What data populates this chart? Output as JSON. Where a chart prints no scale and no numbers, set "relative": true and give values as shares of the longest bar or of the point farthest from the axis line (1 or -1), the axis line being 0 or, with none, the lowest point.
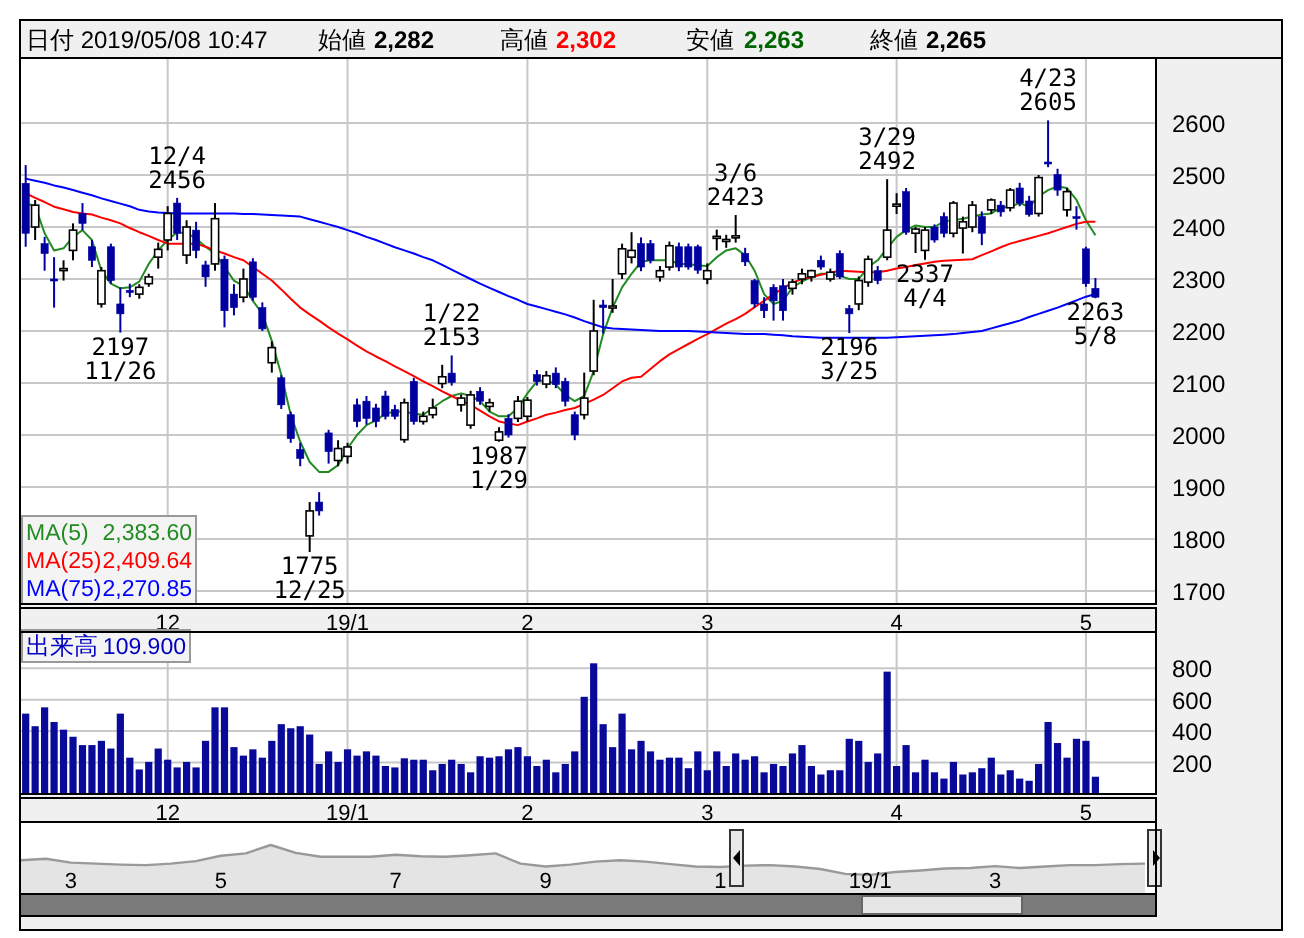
{
  "chart_data": [
    {
      "type": "candlestick",
      "title": "日付 2019/05/08 10:47",
      "annotations": [
        "始値",
        "2,282",
        "高値",
        "2,302",
        "安値",
        "2,263",
        "終値",
        "2,265",
        "2,383.60",
        "2,409.64",
        "2,270.85",
        "12/4\n2456",
        "2197\n11/26",
        "1775\n12/25",
        "1/22\n2153",
        "1987\n1/29",
        "3/6\n2423",
        "3/29\n2492",
        "2196\n3/25",
        "2337\n4/4",
        "4/23\n2605",
        "2263\n5/8"
      ],
      "categories": [
        null,
        null,
        null,
        null,
        null,
        null,
        null,
        null,
        null,
        null,
        null,
        null,
        null,
        null,
        null,
        "12",
        null,
        null,
        null,
        null,
        null,
        null,
        null,
        null,
        null,
        null,
        null,
        null,
        null,
        null,
        null,
        null,
        null,
        null,
        "19/1",
        null,
        null,
        null,
        null,
        null,
        null,
        null,
        null,
        null,
        null,
        null,
        null,
        null,
        null,
        null,
        null,
        null,
        null,
        "2",
        null,
        null,
        null,
        null,
        null,
        null,
        null,
        null,
        null,
        null,
        null,
        null,
        null,
        null,
        null,
        null,
        null,
        null,
        "3",
        null,
        null,
        null,
        null,
        null,
        null,
        null,
        null,
        null,
        null,
        null,
        null,
        null,
        null,
        null,
        null,
        null,
        null,
        null,
        "4",
        null,
        null,
        null,
        null,
        null,
        null,
        null,
        null,
        null,
        null,
        null,
        null,
        null,
        null,
        null,
        null,
        null,
        null,
        null,
        "5",
        null
      ],
      "colors": [
        "#0000a0",
        "#ffffff",
        "#0000a0",
        "#0000a0",
        "#ffffff",
        "#ffffff",
        "#0000a0",
        "#0000a0",
        "#ffffff",
        "#0000a0",
        "#0000a0",
        "#0000a0",
        "#ffffff",
        "#ffffff",
        "#ffffff",
        "#ffffff",
        "#0000a0",
        "#ffffff",
        "#0000a0",
        "#0000a0",
        "#ffffff",
        "#0000a0",
        "#0000a0",
        "#ffffff",
        "#0000a0",
        "#0000a0",
        "#ffffff",
        "#0000a0",
        "#0000a0",
        "#0000a0",
        "#ffffff",
        "#0000a0",
        "#0000a0",
        "#ffffff",
        "#ffffff",
        "#0000a0",
        "#0000a0",
        "#0000a0",
        "#0000a0",
        "#0000a0",
        "#ffffff",
        "#0000a0",
        "#ffffff",
        "#ffffff",
        "#ffffff",
        "#0000a0",
        "#ffffff",
        "#ffffff",
        "#0000a0",
        "#ffffff",
        "#ffffff",
        "#0000a0",
        "#ffffff",
        "#ffffff",
        "#0000a0",
        "#ffffff",
        "#0000a0",
        "#0000a0",
        "#0000a0",
        "#ffffff",
        "#ffffff",
        "#0000a0",
        "#ffffff",
        "#ffffff",
        "#ffffff",
        "#0000a0",
        "#0000a0",
        "#ffffff",
        "#ffffff",
        "#0000a0",
        "#0000a0",
        "#0000a0",
        "#ffffff",
        "#ffffff",
        "#ffffff",
        "#ffffff",
        "#0000a0",
        "#0000a0",
        "#0000a0",
        "#0000a0",
        "#0000a0",
        "#ffffff",
        "#ffffff",
        "#ffffff",
        "#0000a0",
        "#ffffff",
        "#0000a0",
        "#0000a0",
        "#ffffff",
        "#ffffff",
        "#0000a0",
        "#ffffff",
        "#ffffff",
        "#0000a0",
        "#ffffff",
        "#ffffff",
        "#0000a0",
        "#0000a0",
        "#ffffff",
        "#ffffff",
        "#ffffff",
        "#0000a0",
        "#ffffff",
        "#0000a0",
        "#ffffff",
        "#0000a0",
        "#0000a0",
        "#ffffff",
        "#0000a0",
        "#0000a0",
        "#ffffff",
        "#0000a0",
        "#0000a0",
        "#0000a0"
      ],
      "ohlc": [
        [
          2484,
          2519,
          2362,
          2388
        ],
        [
          2400,
          2452,
          2375,
          2442
        ],
        [
          2368,
          2381,
          2316,
          2349
        ],
        [
          2300,
          2342,
          2245,
          2297
        ],
        [
          2318,
          2336,
          2297,
          2320
        ],
        [
          2355,
          2407,
          2336,
          2394
        ],
        [
          2426,
          2446,
          2394,
          2407
        ],
        [
          2362,
          2375,
          2323,
          2336
        ],
        [
          2252,
          2323,
          2245,
          2316
        ],
        [
          2362,
          2368,
          2291,
          2297
        ],
        [
          2252,
          2284,
          2197,
          2233
        ],
        [
          2278,
          2291,
          2265,
          2275
        ],
        [
          2271,
          2290,
          2262,
          2284
        ],
        [
          2291,
          2310,
          2285,
          2304
        ],
        [
          2342,
          2370,
          2320,
          2357
        ],
        [
          2375,
          2440,
          2355,
          2426
        ],
        [
          2446,
          2456,
          2375,
          2388
        ],
        [
          2346,
          2413,
          2329,
          2400
        ],
        [
          2394,
          2410,
          2340,
          2355
        ],
        [
          2327,
          2335,
          2285,
          2304
        ],
        [
          2329,
          2446,
          2316,
          2416
        ],
        [
          2338,
          2345,
          2207,
          2239
        ],
        [
          2271,
          2290,
          2230,
          2245
        ],
        [
          2265,
          2320,
          2255,
          2300
        ],
        [
          2333,
          2340,
          2258,
          2265
        ],
        [
          2245,
          2255,
          2200,
          2204
        ],
        [
          2139,
          2180,
          2120,
          2168
        ],
        [
          2110,
          2115,
          2050,
          2058
        ],
        [
          2039,
          2045,
          1985,
          1993
        ],
        [
          1972,
          1985,
          1940,
          1955
        ],
        [
          1806,
          1871,
          1775,
          1854
        ],
        [
          1871,
          1890,
          1845,
          1854
        ],
        [
          2004,
          2010,
          1945,
          1968
        ],
        [
          1951,
          1990,
          1940,
          1974
        ],
        [
          1959,
          1985,
          1945,
          1977
        ],
        [
          2058,
          2070,
          2015,
          2026
        ],
        [
          2065,
          2075,
          2020,
          2032
        ],
        [
          2052,
          2060,
          2015,
          2026
        ],
        [
          2075,
          2085,
          2030,
          2036
        ],
        [
          2049,
          2058,
          2030,
          2036
        ],
        [
          1991,
          2070,
          1985,
          2062
        ],
        [
          2103,
          2110,
          2020,
          2026
        ],
        [
          2026,
          2045,
          2020,
          2036
        ],
        [
          2039,
          2070,
          2032,
          2052
        ],
        [
          2099,
          2135,
          2090,
          2112
        ],
        [
          2119,
          2153,
          2095,
          2101
        ],
        [
          2058,
          2078,
          2045,
          2071
        ],
        [
          2019,
          2085,
          2012,
          2077
        ],
        [
          2084,
          2092,
          2058,
          2065
        ],
        [
          2055,
          2070,
          2045,
          2062
        ],
        [
          1990,
          2015,
          1987,
          2006
        ],
        [
          2032,
          2040,
          1995,
          2000
        ],
        [
          2032,
          2075,
          2025,
          2065
        ],
        [
          2036,
          2073,
          2026,
          2067
        ],
        [
          2116,
          2125,
          2095,
          2103
        ],
        [
          2098,
          2123,
          2090,
          2114
        ],
        [
          2119,
          2130,
          2090,
          2097
        ],
        [
          2103,
          2110,
          2055,
          2065
        ],
        [
          2039,
          2045,
          1990,
          2000
        ],
        [
          2039,
          2120,
          2030,
          2071
        ],
        [
          2123,
          2260,
          2115,
          2200
        ],
        [
          2250,
          2260,
          2195,
          2245
        ],
        [
          2247,
          2300,
          2235,
          2248
        ],
        [
          2310,
          2368,
          2300,
          2358
        ],
        [
          2342,
          2390,
          2330,
          2355
        ],
        [
          2368,
          2380,
          2315,
          2323
        ],
        [
          2368,
          2375,
          2330,
          2336
        ],
        [
          2304,
          2325,
          2295,
          2316
        ],
        [
          2323,
          2372,
          2316,
          2364
        ],
        [
          2362,
          2370,
          2315,
          2323
        ],
        [
          2362,
          2368,
          2318,
          2323
        ],
        [
          2362,
          2366,
          2310,
          2317
        ],
        [
          2300,
          2330,
          2290,
          2316
        ],
        [
          2380,
          2395,
          2355,
          2382
        ],
        [
          2374,
          2385,
          2360,
          2376
        ],
        [
          2381,
          2423,
          2370,
          2383
        ],
        [
          2349,
          2360,
          2325,
          2333
        ],
        [
          2297,
          2300,
          2245,
          2252
        ],
        [
          2252,
          2265,
          2225,
          2239
        ],
        [
          2284,
          2290,
          2220,
          2258
        ],
        [
          2287,
          2300,
          2220,
          2239
        ],
        [
          2282,
          2300,
          2270,
          2294
        ],
        [
          2300,
          2320,
          2290,
          2310
        ],
        [
          2304,
          2318,
          2295,
          2316
        ],
        [
          2336,
          2345,
          2318,
          2323
        ],
        [
          2300,
          2320,
          2295,
          2313
        ],
        [
          2349,
          2355,
          2300,
          2304
        ],
        [
          2243,
          2250,
          2196,
          2233
        ],
        [
          2252,
          2305,
          2240,
          2297
        ],
        [
          2294,
          2345,
          2285,
          2338
        ],
        [
          2316,
          2325,
          2290,
          2297
        ],
        [
          2342,
          2492,
          2336,
          2394
        ],
        [
          2440,
          2465,
          2425,
          2444
        ],
        [
          2468,
          2475,
          2385,
          2390
        ],
        [
          2388,
          2400,
          2350,
          2396
        ],
        [
          2355,
          2400,
          2337,
          2394
        ],
        [
          2400,
          2405,
          2370,
          2375
        ],
        [
          2420,
          2428,
          2380,
          2388
        ],
        [
          2388,
          2450,
          2380,
          2446
        ],
        [
          2398,
          2420,
          2349,
          2410
        ],
        [
          2400,
          2450,
          2390,
          2442
        ],
        [
          2420,
          2430,
          2365,
          2388
        ],
        [
          2433,
          2455,
          2425,
          2452
        ],
        [
          2442,
          2450,
          2420,
          2429
        ],
        [
          2437,
          2475,
          2430,
          2471
        ],
        [
          2475,
          2485,
          2440,
          2446
        ],
        [
          2450,
          2460,
          2420,
          2424
        ],
        [
          2426,
          2500,
          2420,
          2495
        ],
        [
          2525,
          2605,
          2515,
          2523
        ],
        [
          2501,
          2512,
          2460,
          2471
        ],
        [
          2433,
          2475,
          2420,
          2468
        ],
        [
          2420,
          2440,
          2395,
          2418
        ],
        [
          2358,
          2362,
          2285,
          2291
        ],
        [
          2282,
          2302,
          2263,
          2265
        ]
      ],
      "series": [
        {
          "name": "MA(5)",
          "type": "line",
          "color": "#228b22",
          "values": [
            2446,
            2440,
            2388,
            2355,
            2359,
            2381,
            2394,
            2375,
            2316,
            2291,
            2282,
            2284,
            2295,
            2329,
            2355,
            2375,
            2390,
            2388,
            2378,
            2362,
            2349,
            2323,
            2297,
            2287,
            2258,
            2233,
            2181,
            2116,
            2039,
            1987,
            1948,
            1929,
            1929,
            1942,
            1974,
            2000,
            2019,
            2028,
            2041,
            2045,
            2045,
            2041,
            2039,
            2052,
            2065,
            2075,
            2080,
            2075,
            2065,
            2045,
            2036,
            2036,
            2052,
            2080,
            2103,
            2106,
            2097,
            2077,
            2065,
            2075,
            2123,
            2194,
            2245,
            2284,
            2310,
            2333,
            2336,
            2336,
            2336,
            2329,
            2329,
            2326,
            2325,
            2342,
            2355,
            2359,
            2346,
            2316,
            2271,
            2252,
            2258,
            2284,
            2295,
            2304,
            2310,
            2310,
            2306,
            2300,
            2300,
            2323,
            2336,
            2359,
            2381,
            2394,
            2403,
            2400,
            2400,
            2411,
            2413,
            2416,
            2420,
            2424,
            2426,
            2437,
            2439,
            2446,
            2439,
            2459,
            2471,
            2478,
            2475,
            2452,
            2413,
            2384
          ]
        },
        {
          "name": "MA(25)",
          "type": "line",
          "color": "#ff0000",
          "values": [
            2465,
            2456,
            2448,
            2439,
            2434,
            2429,
            2426,
            2424,
            2418,
            2413,
            2407,
            2398,
            2390,
            2383,
            2375,
            2368,
            2368,
            2368,
            2368,
            2362,
            2355,
            2349,
            2342,
            2336,
            2323,
            2310,
            2297,
            2280,
            2262,
            2245,
            2232,
            2220,
            2207,
            2195,
            2184,
            2172,
            2161,
            2151,
            2142,
            2132,
            2123,
            2113,
            2103,
            2094,
            2084,
            2075,
            2066,
            2058,
            2047,
            2036,
            2026,
            2022,
            2019,
            2026,
            2032,
            2039,
            2043,
            2048,
            2052,
            2060,
            2068,
            2077,
            2090,
            2103,
            2110,
            2112,
            2127,
            2142,
            2155,
            2165,
            2175,
            2185,
            2194,
            2204,
            2214,
            2223,
            2233,
            2246,
            2258,
            2271,
            2282,
            2293,
            2300,
            2304,
            2308,
            2312,
            2316,
            2315,
            2314,
            2313,
            2313,
            2316,
            2320,
            2323,
            2327,
            2330,
            2333,
            2335,
            2336,
            2337,
            2338,
            2346,
            2353,
            2361,
            2368,
            2373,
            2378,
            2383,
            2388,
            2394,
            2400,
            2406,
            2410,
            2410
          ]
        },
        {
          "name": "MA(75)",
          "type": "line",
          "color": "#0000ff",
          "values": [
            2493,
            2489,
            2485,
            2480,
            2476,
            2471,
            2466,
            2461,
            2455,
            2450,
            2445,
            2440,
            2433,
            2430,
            2428,
            2427,
            2426,
            2426,
            2426,
            2426,
            2426,
            2426,
            2426,
            2425,
            2425,
            2424,
            2423,
            2422,
            2421,
            2420,
            2415,
            2410,
            2405,
            2400,
            2394,
            2388,
            2381,
            2375,
            2368,
            2361,
            2355,
            2349,
            2342,
            2336,
            2327,
            2318,
            2309,
            2300,
            2291,
            2283,
            2275,
            2267,
            2260,
            2252,
            2247,
            2242,
            2237,
            2232,
            2226,
            2219,
            2213,
            2207,
            2205,
            2204,
            2203,
            2202,
            2201,
            2200,
            2200,
            2200,
            2200,
            2199,
            2198,
            2197,
            2196,
            2195,
            2194,
            2194,
            2194,
            2193,
            2192,
            2190,
            2189,
            2188,
            2187,
            2187,
            2187,
            2187,
            2187,
            2187,
            2187,
            2187,
            2188,
            2189,
            2190,
            2191,
            2192,
            2193,
            2194,
            2196,
            2198,
            2200,
            2205,
            2210,
            2215,
            2220,
            2227,
            2233,
            2239,
            2245,
            2252,
            2259,
            2266,
            2271
          ]
        }
      ],
      "ylim": [
        1675,
        2725
      ],
      "yticks": [
        1700,
        1800,
        1900,
        2000,
        2100,
        2200,
        2300,
        2400,
        2500,
        2600
      ],
      "grid": true,
      "legend": "bottom left"
    },
    {
      "type": "bar",
      "title": "出来高",
      "annotations": [
        "109.900"
      ],
      "categories": [
        null,
        null,
        null,
        null,
        null,
        null,
        null,
        null,
        null,
        null,
        null,
        null,
        null,
        null,
        null,
        "12",
        null,
        null,
        null,
        null,
        null,
        null,
        null,
        null,
        null,
        null,
        null,
        null,
        null,
        null,
        null,
        null,
        null,
        null,
        "19/1",
        null,
        null,
        null,
        null,
        null,
        null,
        null,
        null,
        null,
        null,
        null,
        null,
        null,
        null,
        null,
        null,
        null,
        null,
        "2",
        null,
        null,
        null,
        null,
        null,
        null,
        null,
        null,
        null,
        null,
        null,
        null,
        null,
        null,
        null,
        null,
        null,
        null,
        "3",
        null,
        null,
        null,
        null,
        null,
        null,
        null,
        null,
        null,
        null,
        null,
        null,
        null,
        null,
        null,
        null,
        null,
        null,
        null,
        "4",
        null,
        null,
        null,
        null,
        null,
        null,
        null,
        null,
        null,
        null,
        null,
        null,
        null,
        null,
        null,
        null,
        null,
        null,
        null,
        "5",
        null
      ],
      "color": "#0a0a9a",
      "values": [
        511,
        431,
        551,
        458,
        409,
        364,
        311,
        311,
        338,
        289,
        511,
        231,
        156,
        204,
        289,
        218,
        169,
        204,
        169,
        338,
        551,
        551,
        298,
        244,
        284,
        231,
        338,
        444,
        418,
        431,
        378,
        191,
        271,
        204,
        284,
        244,
        271,
        244,
        178,
        169,
        227,
        218,
        218,
        151,
        191,
        218,
        191,
        138,
        240,
        231,
        240,
        284,
        298,
        240,
        178,
        218,
        138,
        191,
        271,
        618,
        831,
        444,
        298,
        511,
        284,
        338,
        271,
        218,
        231,
        231,
        164,
        271,
        151,
        271,
        178,
        258,
        218,
        240,
        138,
        191,
        178,
        258,
        311,
        178,
        124,
        151,
        151,
        351,
        338,
        204,
        258,
        778,
        178,
        311,
        138,
        218,
        138,
        98,
        204,
        124,
        138,
        164,
        231,
        124,
        151,
        98,
        84,
        191,
        458,
        324,
        231,
        351,
        338,
        109.9
      ],
      "ylim": [
        0,
        1030
      ],
      "yticks": [
        200,
        400,
        600,
        800
      ],
      "grid": true
    },
    {
      "type": "area",
      "relative": true,
      "color": "#999999",
      "categories": [
        null,
        null,
        "3",
        null,
        null,
        null,
        null,
        null,
        "5",
        null,
        null,
        null,
        null,
        null,
        null,
        "7",
        null,
        null,
        null,
        null,
        null,
        "9",
        null,
        null,
        null,
        null,
        null,
        null,
        "1",
        null,
        null,
        null,
        null,
        null,
        "19/1",
        null,
        null,
        null,
        null,
        "3",
        null,
        null,
        null,
        null,
        null,
        null
      ],
      "values": [
        0.69,
        0.72,
        0.64,
        0.62,
        0.6,
        0.59,
        0.62,
        0.67,
        0.78,
        0.83,
        1,
        0.84,
        0.76,
        0.76,
        0.76,
        0.8,
        0.77,
        0.76,
        0.79,
        0.83,
        0.62,
        0.56,
        0.6,
        0.66,
        0.69,
        0.66,
        0.61,
        0.56,
        0.55,
        0.58,
        0.59,
        0.56,
        0.51,
        0.41,
        0.39,
        0.45,
        0.48,
        0.52,
        0.53,
        0.57,
        0.53,
        0.56,
        0.59,
        0.59,
        0.61,
        0.62
      ]
    }
  ]
}
